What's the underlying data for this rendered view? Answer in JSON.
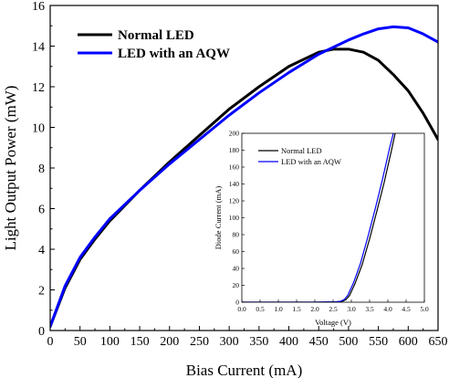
{
  "chart_data": [
    {
      "type": "line",
      "title": "",
      "xlabel": "Bias Current (mA)",
      "ylabel": "Light Output Power (mW)",
      "xlim": [
        0,
        650
      ],
      "ylim": [
        0,
        16
      ],
      "xticks": [
        "0",
        "50",
        "100",
        "150",
        "200",
        "250",
        "300",
        "350",
        "400",
        "450",
        "500",
        "550",
        "600",
        "650"
      ],
      "yticks": [
        "0",
        "2",
        "4",
        "6",
        "8",
        "10",
        "12",
        "14",
        "16"
      ],
      "grid": false,
      "legend_position": "top-left",
      "series": [
        {
          "name": "Normal LED",
          "color": "#000000",
          "x": [
            0,
            25,
            50,
            75,
            100,
            150,
            200,
            250,
            300,
            350,
            400,
            450,
            475,
            500,
            525,
            550,
            575,
            600,
            625,
            650
          ],
          "y": [
            0.2,
            2.1,
            3.5,
            4.5,
            5.4,
            6.9,
            8.3,
            9.6,
            10.9,
            12.0,
            13.0,
            13.7,
            13.85,
            13.85,
            13.7,
            13.3,
            12.6,
            11.8,
            10.7,
            9.4
          ]
        },
        {
          "name": "LED with an AQW",
          "color": "#0000ff",
          "x": [
            0,
            25,
            50,
            75,
            100,
            150,
            200,
            250,
            300,
            350,
            400,
            450,
            500,
            525,
            550,
            575,
            600,
            625,
            650
          ],
          "y": [
            0.2,
            2.2,
            3.6,
            4.6,
            5.5,
            6.9,
            8.2,
            9.4,
            10.6,
            11.7,
            12.7,
            13.6,
            14.3,
            14.6,
            14.85,
            14.95,
            14.9,
            14.6,
            14.2
          ]
        }
      ]
    },
    {
      "type": "line",
      "title": "",
      "xlabel": "Voltage (V)",
      "ylabel": "Diode Current (mA)",
      "xlim": [
        0,
        5
      ],
      "ylim": [
        0,
        200
      ],
      "xticks": [
        "0.0",
        "0.5",
        "1.0",
        "1.5",
        "2.0",
        "2.5",
        "3.0",
        "3.5",
        "4.0",
        "4.5",
        "5.0"
      ],
      "yticks": [
        "0",
        "20",
        "40",
        "60",
        "80",
        "100",
        "120",
        "140",
        "160",
        "180",
        "200"
      ],
      "grid": false,
      "legend_position": "top-left",
      "series": [
        {
          "name": "Normal LED",
          "color": "#000000",
          "x": [
            0,
            2.0,
            2.6,
            2.75,
            2.85,
            2.95,
            3.1,
            3.3,
            3.5,
            3.7,
            3.9,
            4.1,
            4.2
          ],
          "y": [
            0,
            0,
            0.5,
            1,
            3,
            8,
            22,
            45,
            75,
            108,
            142,
            180,
            200
          ]
        },
        {
          "name": "LED with an AQW",
          "color": "#0000ff",
          "x": [
            0,
            2.0,
            2.55,
            2.7,
            2.8,
            2.9,
            3.05,
            3.25,
            3.45,
            3.65,
            3.85,
            4.05,
            4.15
          ],
          "y": [
            0,
            0,
            0.5,
            1,
            3,
            8,
            22,
            46,
            77,
            110,
            145,
            183,
            200
          ]
        }
      ]
    }
  ]
}
